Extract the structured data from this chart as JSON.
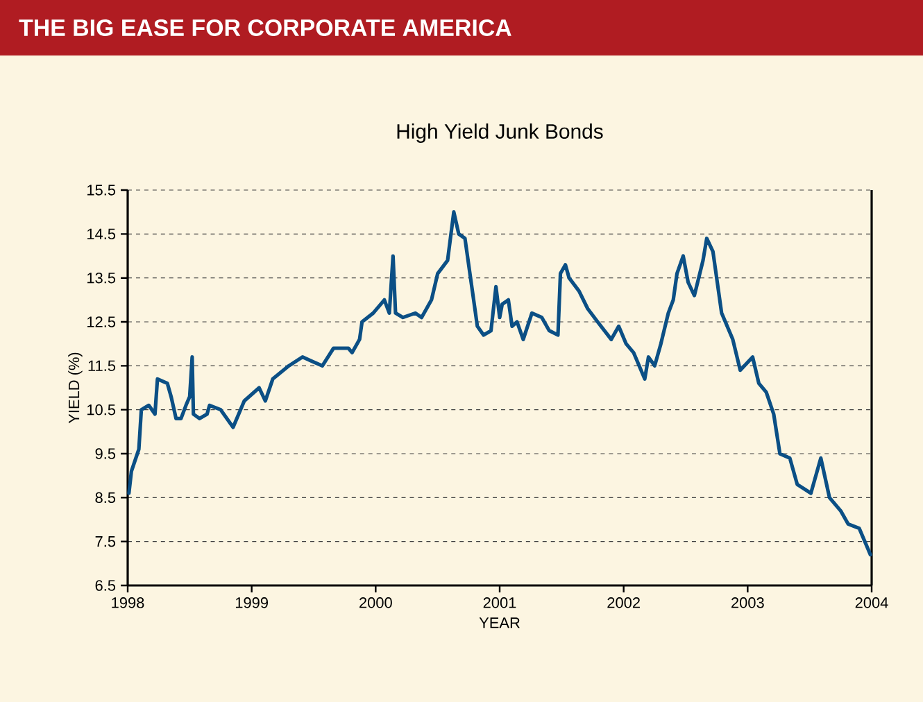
{
  "chart_data": {
    "type": "line",
    "title": "THE BIG EASE FOR CORPORATE AMERICA",
    "subtitle": "High Yield Junk Bonds",
    "xlabel": "YEAR",
    "ylabel": "YIELD (%)",
    "xlim": [
      1998,
      2004
    ],
    "xticks": [
      1998,
      1999,
      2000,
      2001,
      2002,
      2003,
      2004
    ],
    "ylim": [
      6.5,
      15.5
    ],
    "yticks": [
      6.5,
      7.5,
      8.5,
      9.5,
      10.5,
      11.5,
      12.5,
      13.5,
      14.5,
      15.5
    ],
    "grid": "y",
    "marker": "none",
    "line_style": "solid",
    "series": [
      {
        "color": "#0b4f85",
        "x": [
          1998.01,
          1998.03,
          1998.09,
          1998.11,
          1998.17,
          1998.22,
          1998.24,
          1998.32,
          1998.35,
          1998.39,
          1998.43,
          1998.47,
          1998.5,
          1998.52,
          1998.53,
          1998.58,
          1998.64,
          1998.66,
          1998.75,
          1998.85,
          1998.94,
          1999.06,
          1999.11,
          1999.17,
          1999.3,
          1999.41,
          1999.49,
          1999.57,
          1999.66,
          1999.78,
          1999.81,
          1999.87,
          1999.89,
          1999.98,
          2000.07,
          2000.11,
          2000.14,
          2000.16,
          2000.22,
          2000.32,
          2000.37,
          2000.45,
          2000.5,
          2000.58,
          2000.63,
          2000.67,
          2000.72,
          2000.78,
          2000.82,
          2000.87,
          2000.93,
          2000.97,
          2001.0,
          2001.02,
          2001.07,
          2001.1,
          2001.14,
          2001.19,
          2001.26,
          2001.34,
          2001.4,
          2001.47,
          2001.49,
          2001.53,
          2001.56,
          2001.64,
          2001.71,
          2001.79,
          2001.9,
          2001.96,
          2002.02,
          2002.08,
          2002.17,
          2002.2,
          2002.25,
          2002.3,
          2002.36,
          2002.4,
          2002.43,
          2002.48,
          2002.52,
          2002.57,
          2002.64,
          2002.67,
          2002.72,
          2002.79,
          2002.88,
          2002.94,
          2003.04,
          2003.09,
          2003.15,
          2003.21,
          2003.26,
          2003.34,
          2003.4,
          2003.51,
          2003.59,
          2003.66,
          2003.75,
          2003.81,
          2003.9,
          2003.96,
          2003.99
        ],
        "values": [
          8.6,
          9.1,
          9.6,
          10.5,
          10.6,
          10.4,
          11.2,
          11.1,
          10.8,
          10.3,
          10.3,
          10.6,
          10.8,
          11.7,
          10.4,
          10.3,
          10.4,
          10.6,
          10.5,
          10.1,
          10.7,
          11.0,
          10.7,
          11.2,
          11.5,
          11.7,
          11.6,
          11.5,
          11.9,
          11.9,
          11.8,
          12.1,
          12.5,
          12.7,
          13.0,
          12.7,
          14.0,
          12.7,
          12.6,
          12.7,
          12.6,
          13.0,
          13.6,
          13.9,
          15.0,
          14.5,
          14.4,
          13.2,
          12.4,
          12.2,
          12.3,
          13.3,
          12.6,
          12.9,
          13.0,
          12.4,
          12.5,
          12.1,
          12.7,
          12.6,
          12.3,
          12.2,
          13.6,
          13.8,
          13.5,
          13.2,
          12.8,
          12.5,
          12.1,
          12.4,
          12.0,
          11.8,
          11.2,
          11.7,
          11.5,
          12.0,
          12.7,
          13.0,
          13.6,
          14.0,
          13.4,
          13.1,
          13.9,
          14.4,
          14.1,
          12.7,
          12.1,
          11.4,
          11.7,
          11.1,
          10.9,
          10.4,
          9.5,
          9.4,
          8.8,
          8.6,
          9.4,
          8.5,
          8.2,
          7.9,
          7.8,
          7.4,
          7.2
        ]
      }
    ]
  }
}
